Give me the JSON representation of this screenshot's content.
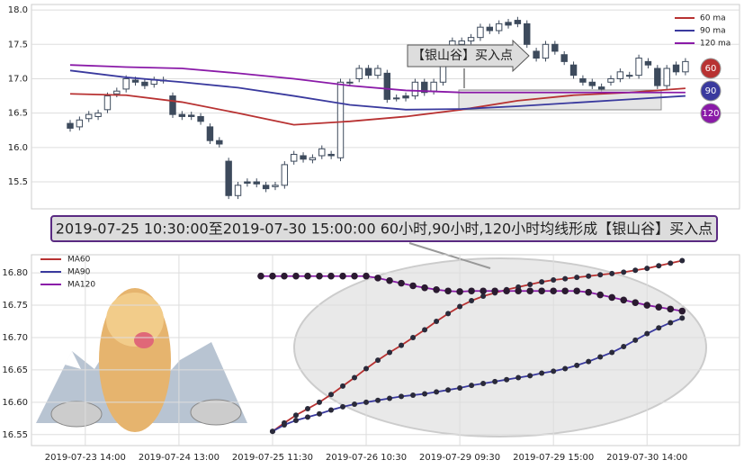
{
  "banner": "2019-07-25 10:30:00至2019-07-30 15:00:00 60小时,90小时,120小时均线形成【银山谷】买入点",
  "chart_data": [
    {
      "type": "candlestick",
      "open": [
        16.35,
        16.3,
        16.42,
        16.45,
        16.55,
        16.78,
        16.85,
        16.98,
        16.95,
        16.92,
        16.98,
        16.75,
        16.48,
        16.47,
        16.45,
        16.3,
        16.1,
        15.8,
        15.3,
        15.5,
        15.5,
        15.45,
        15.43,
        15.45,
        15.8,
        15.88,
        15.82,
        15.88,
        15.9,
        15.85,
        16.95,
        17.0,
        17.15,
        17.05,
        17.08,
        16.72,
        16.75,
        16.75,
        16.95,
        16.82,
        16.95,
        17.35,
        17.5,
        17.55,
        17.6,
        17.75,
        17.7,
        17.82,
        17.85,
        17.8,
        17.4,
        17.3,
        17.5,
        17.35,
        17.2,
        17.0,
        16.95,
        16.88,
        16.95,
        17.0,
        17.05,
        17.05,
        17.25,
        17.15,
        16.9,
        17.2,
        17.1
      ],
      "high": [
        16.4,
        16.45,
        16.53,
        16.55,
        16.8,
        16.87,
        17.05,
        17.03,
        17.0,
        17.03,
        17.03,
        16.8,
        16.53,
        16.52,
        16.5,
        16.35,
        16.15,
        15.85,
        15.5,
        15.55,
        15.55,
        15.5,
        15.5,
        15.8,
        15.95,
        15.93,
        15.9,
        16.03,
        15.95,
        17.0,
        17.0,
        17.2,
        17.2,
        17.2,
        17.13,
        16.77,
        16.8,
        17.0,
        17.0,
        17.0,
        17.4,
        17.6,
        17.6,
        17.65,
        17.8,
        17.8,
        17.85,
        17.87,
        17.9,
        17.85,
        17.45,
        17.55,
        17.55,
        17.4,
        17.25,
        17.05,
        17.0,
        16.93,
        17.05,
        17.15,
        17.1,
        17.35,
        17.3,
        17.2,
        17.2,
        17.25,
        17.3
      ],
      "low": [
        16.23,
        16.25,
        16.37,
        16.4,
        16.5,
        16.73,
        16.8,
        16.9,
        16.85,
        16.87,
        16.93,
        16.43,
        16.4,
        16.4,
        16.33,
        16.05,
        16.0,
        15.25,
        15.25,
        15.43,
        15.42,
        15.35,
        15.38,
        15.4,
        15.75,
        15.78,
        15.77,
        15.83,
        15.83,
        15.8,
        16.9,
        16.95,
        17.0,
        17.0,
        16.65,
        16.67,
        16.67,
        16.7,
        16.75,
        16.77,
        16.9,
        17.3,
        17.45,
        17.5,
        17.55,
        17.65,
        17.65,
        17.73,
        17.75,
        17.45,
        17.25,
        17.25,
        17.35,
        17.2,
        17.0,
        16.9,
        16.85,
        16.8,
        16.9,
        16.95,
        17.0,
        17.0,
        17.15,
        16.85,
        16.85,
        17.05,
        17.05
      ],
      "close": [
        16.28,
        16.4,
        16.48,
        16.5,
        16.75,
        16.82,
        17.0,
        16.95,
        16.9,
        16.98,
        16.98,
        16.48,
        16.45,
        16.45,
        16.38,
        16.1,
        16.05,
        15.3,
        15.45,
        15.48,
        15.47,
        15.4,
        15.45,
        15.75,
        15.9,
        15.83,
        15.85,
        15.98,
        15.88,
        16.95,
        16.95,
        17.15,
        17.05,
        17.15,
        16.7,
        16.72,
        16.72,
        16.95,
        16.8,
        16.95,
        17.35,
        17.55,
        17.55,
        17.6,
        17.75,
        17.7,
        17.8,
        17.78,
        17.8,
        17.5,
        17.3,
        17.5,
        17.4,
        17.25,
        17.05,
        16.95,
        16.9,
        16.85,
        17.0,
        17.1,
        17.05,
        17.3,
        17.2,
        16.9,
        17.15,
        17.1,
        17.25
      ],
      "rising_color": "#ffffff",
      "falling_color": "#3d4a5c",
      "series": [
        {
          "name": "60 ma",
          "color": "#b83232",
          "end_label": "60",
          "x": [
            0,
            6,
            12,
            18,
            24,
            30,
            36,
            42,
            48,
            54,
            60,
            66
          ],
          "values": [
            16.78,
            16.76,
            16.66,
            16.5,
            16.33,
            16.38,
            16.45,
            16.55,
            16.68,
            16.76,
            16.8,
            16.86
          ]
        },
        {
          "name": "90 ma",
          "color": "#3a3a9e",
          "end_label": "90",
          "x": [
            0,
            6,
            12,
            18,
            24,
            30,
            36,
            42,
            48,
            54,
            60,
            66
          ],
          "values": [
            17.12,
            17.02,
            16.95,
            16.87,
            16.75,
            16.62,
            16.55,
            16.56,
            16.6,
            16.65,
            16.7,
            16.75
          ]
        },
        {
          "name": "120 ma",
          "color": "#8a1aa8",
          "end_label": "120",
          "x": [
            0,
            6,
            12,
            18,
            24,
            30,
            36,
            42,
            48,
            54,
            60,
            66
          ],
          "values": [
            17.2,
            17.17,
            17.15,
            17.08,
            17.0,
            16.9,
            16.83,
            16.8,
            16.8,
            16.8,
            16.8,
            16.8
          ]
        }
      ],
      "annotation": "【银山谷】买入点",
      "xlim": [
        -4.15,
        71.8
      ],
      "ylim": [
        15.107,
        18.08
      ],
      "yticks": [
        {
          "value": 15.5,
          "label": "15.5"
        },
        {
          "value": 16.0,
          "label": "16.0"
        },
        {
          "value": 16.5,
          "label": "16.5"
        },
        {
          "value": 17.0,
          "label": "17.0"
        },
        {
          "value": 17.5,
          "label": "17.5"
        },
        {
          "value": 18.0,
          "label": "18.0"
        }
      ],
      "legend": "upper right",
      "grid": true
    },
    {
      "type": "line",
      "series": [
        {
          "name": "MA60",
          "color": "#b83232",
          "x": [
            0,
            1,
            2,
            3,
            4,
            5,
            6,
            7,
            8,
            9,
            10,
            11,
            12,
            13,
            14,
            15,
            16,
            17,
            18,
            19,
            20,
            21,
            22,
            23,
            24,
            25,
            26,
            27,
            28,
            29,
            30,
            31,
            32,
            33,
            34,
            35,
            36
          ],
          "values": [
            null,
            16.555,
            16.568,
            16.58,
            16.59,
            16.6,
            16.612,
            16.625,
            16.638,
            16.652,
            16.665,
            16.677,
            16.688,
            16.7,
            16.712,
            16.725,
            16.737,
            16.748,
            16.757,
            16.764,
            16.769,
            16.774,
            16.778,
            16.782,
            16.786,
            16.789,
            16.791,
            16.793,
            16.795,
            16.797,
            16.799,
            16.801,
            16.804,
            16.807,
            16.811,
            16.815,
            16.819
          ]
        },
        {
          "name": "MA90",
          "color": "#3a3a9e",
          "x": [
            0,
            1,
            2,
            3,
            4,
            5,
            6,
            7,
            8,
            9,
            10,
            11,
            12,
            13,
            14,
            15,
            16,
            17,
            18,
            19,
            20,
            21,
            22,
            23,
            24,
            25,
            26,
            27,
            28,
            29,
            30,
            31,
            32,
            33,
            34,
            35,
            36
          ],
          "values": [
            null,
            16.555,
            16.565,
            16.572,
            16.577,
            16.582,
            16.588,
            16.593,
            16.597,
            16.6,
            16.603,
            16.606,
            16.609,
            16.611,
            16.613,
            16.616,
            16.619,
            16.622,
            16.626,
            16.629,
            16.632,
            16.635,
            16.638,
            16.641,
            16.645,
            16.648,
            16.652,
            16.657,
            16.663,
            16.67,
            16.677,
            16.686,
            16.696,
            16.706,
            16.715,
            16.723,
            16.73
          ]
        },
        {
          "name": "MA120",
          "color": "#8a1aa8",
          "x": [
            0,
            1,
            2,
            3,
            4,
            5,
            6,
            7,
            8,
            9,
            10,
            11,
            12,
            13,
            14,
            15,
            16,
            17,
            18,
            19,
            20,
            21,
            22,
            23,
            24,
            25,
            26,
            27,
            28,
            29,
            30,
            31,
            32,
            33,
            34,
            35,
            36
          ],
          "values": [
            16.795,
            16.795,
            16.795,
            16.795,
            16.795,
            16.795,
            16.795,
            16.795,
            16.795,
            16.795,
            16.792,
            16.788,
            16.784,
            16.78,
            16.777,
            16.774,
            16.772,
            16.771,
            16.772,
            16.772,
            16.772,
            16.772,
            16.772,
            16.772,
            16.772,
            16.772,
            16.772,
            16.772,
            16.77,
            16.766,
            16.762,
            16.758,
            16.754,
            16.75,
            16.747,
            16.744,
            16.741
          ]
        }
      ],
      "xlim": [
        -19.6,
        40.9
      ],
      "xticks": [
        {
          "value": -15,
          "label": "2019-07-23 14:00"
        },
        {
          "value": -7,
          "label": "2019-07-24 13:00"
        },
        {
          "value": 1,
          "label": "2019-07-25 11:30"
        },
        {
          "value": 9,
          "label": "2019-07-26 10:30"
        },
        {
          "value": 17,
          "label": "2019-07-29 09:30"
        },
        {
          "value": 25,
          "label": "2019-07-29 15:00"
        },
        {
          "value": 33,
          "label": "2019-07-30 14:00"
        }
      ],
      "ylim": [
        16.533,
        16.828
      ],
      "yticks": [
        {
          "value": 16.55,
          "label": "16.55"
        },
        {
          "value": 16.6,
          "label": "16.60"
        },
        {
          "value": 16.65,
          "label": "16.65"
        },
        {
          "value": 16.7,
          "label": "16.70"
        },
        {
          "value": 16.75,
          "label": "16.75"
        },
        {
          "value": 16.8,
          "label": "16.80"
        }
      ],
      "legend": "upper left",
      "grid": true
    }
  ]
}
